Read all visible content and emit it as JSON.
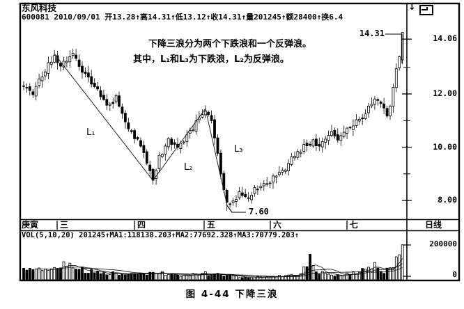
{
  "window": {
    "stock_name": "东风科技",
    "info_line": "600081 2010/09/01 开13.28↑高14.31↑低13.12↑收14.31↑量201245↑额28400↑换6.4"
  },
  "annotation": {
    "line1": "下降三浪分为两个下跌浪和一个反弹浪。",
    "line2": "其中，L₁和L₃为下跌浪，L₂为反弹浪。"
  },
  "wave_labels": {
    "l1": "L₁",
    "l2": "L₂",
    "l3": "L₃"
  },
  "callouts": {
    "high": "14.31",
    "low": "7.60"
  },
  "price_axis": {
    "labels": [
      "14.06",
      "12.00",
      "10.00",
      "8.00"
    ]
  },
  "time_axis": {
    "year": "庚寅",
    "months": [
      "三",
      "四",
      "五",
      "六",
      "七"
    ],
    "period_label": "日线"
  },
  "volume_panel": {
    "header": "VOL(5,10,20) 201245↑MA1:118138.203↑MA2:77692.328↑MA3:70779.203↑",
    "max_label": "200000",
    "zero_label": "0"
  },
  "caption": "图 4-44  下降三浪",
  "chart_data": {
    "type": "candlestick_with_volume",
    "title": "东风科技(600081) 日线 2010/09/01",
    "last_candle": {
      "open": 13.28,
      "high": 14.31,
      "low": 13.12,
      "close": 14.31,
      "volume": 201245,
      "amount": 28400,
      "turnover": 6.4
    },
    "price_ticks_major": [
      14.06,
      12.0,
      10.0,
      8.0
    ],
    "price_ticks_minor": [
      13.0,
      11.0,
      9.0
    ],
    "volume_ticks": [
      200000,
      0
    ],
    "months": [
      "三",
      "四",
      "五",
      "六",
      "七"
    ],
    "key_points": {
      "first_peak": 13.5,
      "l1_trough": 8.75,
      "l2_peak": 11.45,
      "l3_trough": 7.6,
      "final_high": 14.31
    },
    "n_candles": 124,
    "seed": 11,
    "lowest_candle_index": 66,
    "close_anchors": [
      [
        0,
        12.3
      ],
      [
        3,
        12.05
      ],
      [
        6,
        12.7
      ],
      [
        10,
        13.5
      ],
      [
        12,
        13.05
      ],
      [
        16,
        13.55
      ],
      [
        19,
        12.9
      ],
      [
        24,
        12.15
      ],
      [
        27,
        11.5
      ],
      [
        30,
        11.85
      ],
      [
        34,
        10.7
      ],
      [
        38,
        10.1
      ],
      [
        42,
        8.75
      ],
      [
        44,
        9.6
      ],
      [
        47,
        10.25
      ],
      [
        50,
        10.05
      ],
      [
        53,
        10.4
      ],
      [
        56,
        10.9
      ],
      [
        59,
        11.45
      ],
      [
        61,
        10.9
      ],
      [
        63,
        9.7
      ],
      [
        66,
        7.85
      ],
      [
        68,
        8.0
      ],
      [
        70,
        8.3
      ],
      [
        73,
        8.2
      ],
      [
        76,
        8.5
      ],
      [
        79,
        8.65
      ],
      [
        82,
        8.95
      ],
      [
        85,
        9.25
      ],
      [
        88,
        9.7
      ],
      [
        91,
        10.0
      ],
      [
        94,
        10.2
      ],
      [
        96,
        10.1
      ],
      [
        98,
        10.4
      ],
      [
        100,
        10.5
      ],
      [
        102,
        10.3
      ],
      [
        104,
        10.6
      ],
      [
        106,
        10.8
      ],
      [
        108,
        11.0
      ],
      [
        110,
        11.15
      ],
      [
        112,
        11.5
      ],
      [
        114,
        11.85
      ],
      [
        116,
        11.7
      ],
      [
        118,
        11.2
      ],
      [
        119,
        11.6
      ],
      [
        120,
        12.2
      ],
      [
        121,
        12.9
      ],
      [
        122,
        13.4
      ],
      [
        123,
        14.31
      ]
    ],
    "volume_anchors": [
      [
        0,
        55000
      ],
      [
        4,
        65000
      ],
      [
        8,
        58000
      ],
      [
        12,
        72000
      ],
      [
        14,
        100000
      ],
      [
        17,
        65000
      ],
      [
        20,
        50000
      ],
      [
        24,
        45000
      ],
      [
        28,
        40000
      ],
      [
        32,
        34000
      ],
      [
        36,
        30000
      ],
      [
        40,
        34000
      ],
      [
        44,
        40000
      ],
      [
        48,
        30000
      ],
      [
        52,
        27000
      ],
      [
        56,
        30000
      ],
      [
        59,
        36000
      ],
      [
        63,
        30000
      ],
      [
        66,
        26000
      ],
      [
        70,
        17000
      ],
      [
        74,
        15000
      ],
      [
        78,
        17000
      ],
      [
        82,
        20000
      ],
      [
        86,
        24000
      ],
      [
        90,
        40000
      ],
      [
        93,
        120000
      ],
      [
        95,
        45000
      ],
      [
        98,
        35000
      ],
      [
        101,
        30000
      ],
      [
        104,
        32000
      ],
      [
        107,
        40000
      ],
      [
        109,
        50000
      ],
      [
        111,
        65000
      ],
      [
        113,
        85000
      ],
      [
        115,
        70000
      ],
      [
        117,
        48000
      ],
      [
        119,
        65000
      ],
      [
        121,
        115000
      ],
      [
        122,
        150000
      ],
      [
        123,
        201245
      ]
    ],
    "wave_points": [
      [
        10,
        13.5
      ],
      [
        42,
        8.75
      ],
      [
        59,
        11.45
      ],
      [
        66,
        7.85
      ]
    ],
    "callout_lines": {
      "high": [
        [
          553,
          49
        ],
        [
          577,
          49
        ],
        [
          577,
          91
        ]
      ],
      "low": [
        [
          325,
          294
        ],
        [
          333,
          305
        ],
        [
          353,
          305
        ]
      ]
    }
  }
}
